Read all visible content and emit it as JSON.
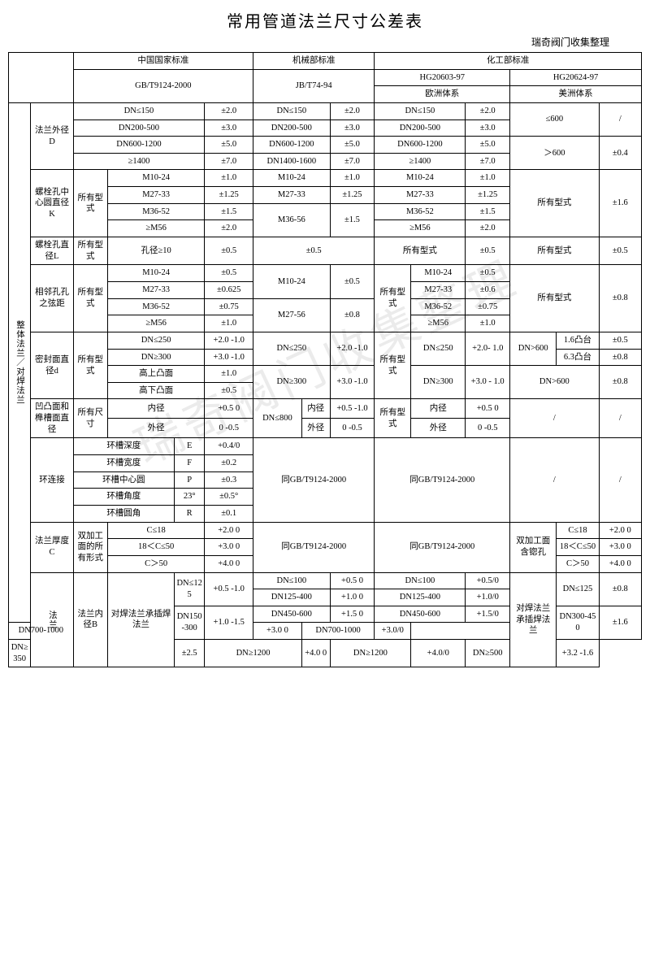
{
  "title": "常用管道法兰尺寸公差表",
  "subtitle": "瑞奇阀门收集整理",
  "watermark": "瑞奇阀门收集整理",
  "headers": {
    "cn_national": "中国国家标准",
    "mech_dept": "机械部标准",
    "chem_dept": "化工部标准",
    "gb": "GB/T9124-2000",
    "jb": "JB/T74-94",
    "hg1": "HG20603-97",
    "hg1_sub": "欧洲体系",
    "hg2": "HG20624-97",
    "hg2_sub": "美洲体系"
  },
  "side": {
    "group1": "整体法兰／对焊法兰",
    "group2": "法兰",
    "d_outer": "法兰外径D",
    "bolt_circle": "螺栓孔中心圆直径K",
    "bolt_dia": "螺栓孔直径L",
    "adj_hole": "相邻孔孔之弦距",
    "seal_d": "密封面直径d",
    "concave": "凹凸面和榫槽面直径",
    "ring": "环连接",
    "thick": "法兰厚度C",
    "inner_b": "法兰内径B",
    "all_type": "所有型式",
    "all_size": "所有尺寸",
    "double_face": "双加工面的所有形式",
    "butt_socket": "对焊法兰承插焊法兰"
  },
  "d_outer": {
    "gb": [
      [
        "DN≤150",
        "±2.0"
      ],
      [
        "DN200-500",
        "±3.0"
      ],
      [
        "DN600-1200",
        "±5.0"
      ],
      [
        "≥1400",
        "±7.0"
      ]
    ],
    "jb": [
      [
        "DN≤150",
        "±2.0"
      ],
      [
        "DN200-500",
        "±3.0"
      ],
      [
        "DN600-1200",
        "±5.0"
      ],
      [
        "DN1400-1600",
        "±7.0"
      ]
    ],
    "hg1": [
      [
        "DN≤150",
        "±2.0"
      ],
      [
        "DN200-500",
        "±3.0"
      ],
      [
        "DN600-1200",
        "±5.0"
      ],
      [
        "≥1400",
        "±7.0"
      ]
    ],
    "hg2": [
      [
        "≤600",
        "/"
      ],
      [
        "＞600",
        "±0.4"
      ]
    ]
  },
  "bolt_circle": {
    "gb": [
      [
        "M10-24",
        "±1.0"
      ],
      [
        "M27-33",
        "±1.25"
      ],
      [
        "M36-52",
        "±1.5"
      ],
      [
        "≥M56",
        "±2.0"
      ]
    ],
    "jb": [
      [
        "M10-24",
        "±1.0"
      ],
      [
        "M27-33",
        "±1.25"
      ],
      [
        "M36-56",
        "±1.5"
      ]
    ],
    "hg1": [
      [
        "M10-24",
        "±1.0"
      ],
      [
        "M27-33",
        "±1.25"
      ],
      [
        "M36-52",
        "±1.5"
      ],
      [
        "≥M56",
        "±2.0"
      ]
    ],
    "hg2": [
      "所有型式",
      "±1.6"
    ]
  },
  "bolt_dia": {
    "gb": [
      "孔径≥10",
      "±0.5"
    ],
    "jb": "±0.5",
    "hg1": [
      "所有型式",
      "±0.5"
    ],
    "hg2": [
      "所有型式",
      "±0.5"
    ]
  },
  "adj_hole": {
    "gb": [
      [
        "M10-24",
        "±0.5"
      ],
      [
        "M27-33",
        "±0.625"
      ],
      [
        "M36-52",
        "±0.75"
      ],
      [
        "≥M56",
        "±1.0"
      ]
    ],
    "jb": [
      [
        "M10-24",
        "±0.5"
      ],
      [
        "M27-56",
        "±0.8"
      ]
    ],
    "hg1_lbl": "所有型式",
    "hg1": [
      [
        "M10-24",
        "±0.5"
      ],
      [
        "M27-33",
        "±0.6"
      ],
      [
        "M36-52",
        "±0.75"
      ],
      [
        "≥M56",
        "±1.0"
      ]
    ],
    "hg2": [
      "所有型式",
      "±0.8"
    ]
  },
  "seal_d": {
    "gb": [
      [
        "DN≤250",
        "+2.0\n-1.0"
      ],
      [
        "DN≥300",
        "+3.0\n-1.0"
      ],
      [
        "高上凸面",
        "±1.0"
      ],
      [
        "高下凸面",
        "±0.5"
      ]
    ],
    "jb": [
      [
        "DN≤250",
        "+2.0\n-1.0"
      ],
      [
        "DN≥300",
        "+3.0\n-1.0"
      ]
    ],
    "hg1_lbl": "所有型式",
    "hg1": [
      [
        "DN≤250",
        "+2.0-\n1.0"
      ],
      [
        "DN≥300",
        "+3.0 -\n1.0"
      ]
    ],
    "hg2_lbl": "DN>600",
    "hg2": [
      [
        "1.6凸台",
        "±0.5"
      ],
      [
        "6.3凸台",
        "±0.8"
      ],
      [
        "DN>600",
        "±0.8"
      ]
    ]
  },
  "concave": {
    "gb": [
      [
        "内径",
        "+0.5\n0"
      ],
      [
        "外径",
        "0\n-0.5"
      ]
    ],
    "jb_lbl": "DN≤800",
    "jb": [
      [
        "内径",
        "+0.5\n-1.0"
      ],
      [
        "外径",
        "0\n-0.5"
      ]
    ],
    "hg1_lbl": "所有型式",
    "hg1": [
      [
        "内径",
        "+0.5\n0"
      ],
      [
        "外径",
        "0\n-0.5"
      ]
    ],
    "hg2": [
      "/",
      "/"
    ]
  },
  "ring": {
    "rows": [
      [
        "环槽深度",
        "E",
        "+0.4/0"
      ],
      [
        "环槽宽度",
        "F",
        "±0.2"
      ],
      [
        "环槽中心圆",
        "P",
        "±0.3"
      ],
      [
        "环槽角度",
        "23°",
        "±0.5°"
      ],
      [
        "环槽圆角",
        "R",
        "±0.1"
      ]
    ],
    "same_gb": "同GB/T9124-2000",
    "hg2": [
      "/",
      "/"
    ]
  },
  "thick": {
    "gb": [
      [
        "C≤18",
        "+2.0\n0"
      ],
      [
        "18＜C≤50",
        "+3.0\n0"
      ],
      [
        "C＞50",
        "+4.0\n0"
      ]
    ],
    "same_gb": "同GB/T9124-2000",
    "hg2_lbl": "双加工面含锪孔",
    "hg2": [
      [
        "C≤18",
        "+2.0\n0"
      ],
      [
        "18＜C≤50",
        "+3.0\n0"
      ],
      [
        "C＞50",
        "+4.0\n0"
      ]
    ]
  },
  "inner_b": {
    "gb": [
      [
        "DN≤125",
        "+0.5\n-1.0"
      ],
      [
        "DN150-300",
        "+1.0\n-1.5"
      ],
      [
        "DN≥350",
        "±2.5"
      ]
    ],
    "jb": [
      [
        "DN≤100",
        "+0.5\n0"
      ],
      [
        "DN125-400",
        "+1.0\n0"
      ],
      [
        "DN450-600",
        "+1.5\n0"
      ],
      [
        "DN700-1000",
        "+3.0\n0"
      ],
      [
        "DN≥1200",
        "+4.0\n0"
      ]
    ],
    "hg1": [
      [
        "DN≤100",
        "+0.5/0"
      ],
      [
        "DN125-400",
        "+1.0/0"
      ],
      [
        "DN450-600",
        "+1.5/0"
      ],
      [
        "DN700-1000",
        "+3.0/0"
      ],
      [
        "DN≥1200",
        "+4.0/0"
      ]
    ],
    "hg2_lbl": "对焊法兰承插焊法兰",
    "hg2": [
      [
        "DN≤125",
        "±0.8"
      ],
      [
        "DN300-450",
        "±1.6"
      ],
      [
        "DN≥500",
        "+3.2\n-1.6"
      ]
    ]
  }
}
